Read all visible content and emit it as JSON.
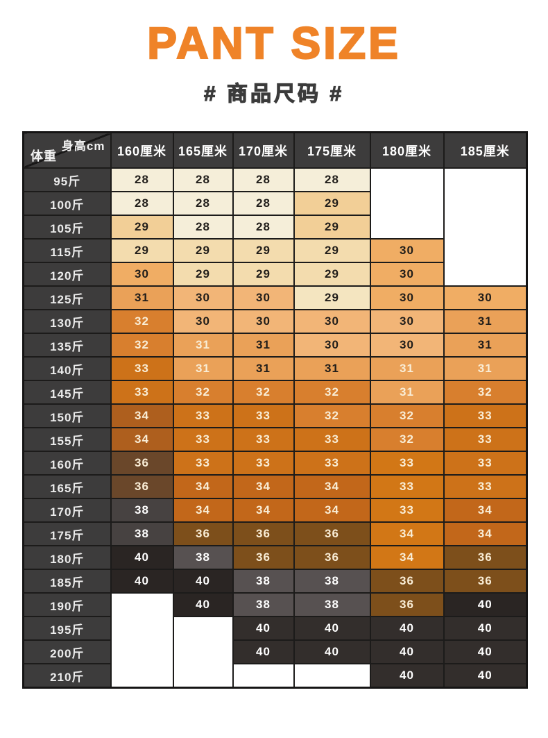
{
  "header": {
    "title": "PANT SIZE",
    "subtitle": "# 商品尺码 #"
  },
  "chart_data": {
    "type": "table",
    "title": "PANT SIZE",
    "subtitle": "# 商品尺码 #",
    "corner": {
      "top_right": "身高cm",
      "bottom_left": "体重"
    },
    "columns": [
      "160厘米",
      "165厘米",
      "170厘米",
      "175厘米",
      "180厘米",
      "185厘米"
    ],
    "rows": [
      {
        "weight": "95斤",
        "sizes": [
          "28",
          "28",
          "28",
          "28",
          null,
          null
        ]
      },
      {
        "weight": "100斤",
        "sizes": [
          "28",
          "28",
          "28",
          "29",
          null,
          null
        ]
      },
      {
        "weight": "105斤",
        "sizes": [
          "29",
          "28",
          "28",
          "29",
          null,
          null
        ]
      },
      {
        "weight": "115斤",
        "sizes": [
          "29",
          "29",
          "29",
          "29",
          "30",
          null
        ]
      },
      {
        "weight": "120斤",
        "sizes": [
          "30",
          "29",
          "29",
          "29",
          "30",
          null
        ]
      },
      {
        "weight": "125斤",
        "sizes": [
          "31",
          "30",
          "30",
          "29",
          "30",
          "30"
        ]
      },
      {
        "weight": "130斤",
        "sizes": [
          "32",
          "30",
          "30",
          "30",
          "30",
          "31"
        ]
      },
      {
        "weight": "135斤",
        "sizes": [
          "32",
          "31",
          "31",
          "30",
          "30",
          "31"
        ]
      },
      {
        "weight": "140斤",
        "sizes": [
          "33",
          "31",
          "31",
          "31",
          "31",
          "31"
        ]
      },
      {
        "weight": "145斤",
        "sizes": [
          "33",
          "32",
          "32",
          "32",
          "31",
          "32"
        ]
      },
      {
        "weight": "150斤",
        "sizes": [
          "34",
          "33",
          "33",
          "32",
          "32",
          "33"
        ]
      },
      {
        "weight": "155斤",
        "sizes": [
          "34",
          "33",
          "33",
          "33",
          "32",
          "33"
        ]
      },
      {
        "weight": "160斤",
        "sizes": [
          "36",
          "33",
          "33",
          "33",
          "33",
          "33"
        ]
      },
      {
        "weight": "165斤",
        "sizes": [
          "36",
          "34",
          "34",
          "34",
          "33",
          "33"
        ]
      },
      {
        "weight": "170斤",
        "sizes": [
          "38",
          "34",
          "34",
          "34",
          "33",
          "34"
        ]
      },
      {
        "weight": "175斤",
        "sizes": [
          "38",
          "36",
          "36",
          "36",
          "34",
          "34"
        ]
      },
      {
        "weight": "180斤",
        "sizes": [
          "40",
          "38",
          "36",
          "36",
          "34",
          "36"
        ]
      },
      {
        "weight": "185斤",
        "sizes": [
          "40",
          "40",
          "38",
          "38",
          "36",
          "36"
        ]
      },
      {
        "weight": "190斤",
        "sizes": [
          null,
          "40",
          "38",
          "38",
          "36",
          "40"
        ]
      },
      {
        "weight": "195斤",
        "sizes": [
          null,
          null,
          "40",
          "40",
          "40",
          "40"
        ]
      },
      {
        "weight": "200斤",
        "sizes": [
          null,
          null,
          "40",
          "40",
          "40",
          "40"
        ]
      },
      {
        "weight": "210斤",
        "sizes": [
          null,
          null,
          null,
          null,
          "40",
          "40"
        ]
      }
    ]
  },
  "table_style": {
    "palette": {
      "cream": "#f5eed9",
      "peach": "#f2cf97",
      "tan": "#f3dcae",
      "cream2": "#f4e5c0",
      "lo1": "#f2b577",
      "lo2": "#f0ad64",
      "mo1": "#eaa158",
      "o1": "#d87f2e",
      "o2": "#cd7219",
      "o3": "#c2671a",
      "o4": "#ae5f1e",
      "ob": "#d27716",
      "br": "#7d4f1b",
      "br2": "#6a472a",
      "g1": "#575151",
      "g2": "#474241",
      "k1": "#2a2523",
      "k2": "#332e2c"
    },
    "text_tones": {
      "d": "#201d1a",
      "l": "#f9edd6",
      "w": "#ffffff"
    },
    "cells": [
      [
        [
          "cream",
          "d"
        ],
        [
          "cream",
          "d"
        ],
        [
          "cream",
          "d"
        ],
        [
          "cream",
          "d"
        ],
        null,
        null
      ],
      [
        [
          "cream",
          "d"
        ],
        [
          "cream",
          "d"
        ],
        [
          "cream",
          "d"
        ],
        [
          "peach",
          "d"
        ],
        null,
        null
      ],
      [
        [
          "peach",
          "d"
        ],
        [
          "cream",
          "d"
        ],
        [
          "cream",
          "d"
        ],
        [
          "peach",
          "d"
        ],
        null,
        null
      ],
      [
        [
          "tan",
          "d"
        ],
        [
          "tan",
          "d"
        ],
        [
          "tan",
          "d"
        ],
        [
          "tan",
          "d"
        ],
        [
          "lo2",
          "d"
        ],
        null
      ],
      [
        [
          "lo2",
          "d"
        ],
        [
          "tan",
          "d"
        ],
        [
          "tan",
          "d"
        ],
        [
          "tan",
          "d"
        ],
        [
          "lo2",
          "d"
        ],
        null
      ],
      [
        [
          "mo1",
          "d"
        ],
        [
          "lo1",
          "d"
        ],
        [
          "lo1",
          "d"
        ],
        [
          "cream2",
          "d"
        ],
        [
          "lo2",
          "d"
        ],
        [
          "lo2",
          "d"
        ]
      ],
      [
        [
          "o1",
          "l"
        ],
        [
          "lo1",
          "d"
        ],
        [
          "lo1",
          "d"
        ],
        [
          "lo1",
          "d"
        ],
        [
          "lo1",
          "d"
        ],
        [
          "mo1",
          "d"
        ]
      ],
      [
        [
          "o1",
          "l"
        ],
        [
          "mo1",
          "l"
        ],
        [
          "mo1",
          "d"
        ],
        [
          "lo1",
          "d"
        ],
        [
          "lo1",
          "d"
        ],
        [
          "mo1",
          "d"
        ]
      ],
      [
        [
          "o2",
          "l"
        ],
        [
          "mo1",
          "l"
        ],
        [
          "mo1",
          "d"
        ],
        [
          "mo1",
          "d"
        ],
        [
          "mo1",
          "l"
        ],
        [
          "mo1",
          "l"
        ]
      ],
      [
        [
          "o2",
          "l"
        ],
        [
          "o1",
          "l"
        ],
        [
          "o1",
          "l"
        ],
        [
          "o1",
          "l"
        ],
        [
          "mo1",
          "l"
        ],
        [
          "o1",
          "l"
        ]
      ],
      [
        [
          "o4",
          "l"
        ],
        [
          "o2",
          "l"
        ],
        [
          "o2",
          "l"
        ],
        [
          "o1",
          "l"
        ],
        [
          "o1",
          "l"
        ],
        [
          "o2",
          "l"
        ]
      ],
      [
        [
          "o4",
          "l"
        ],
        [
          "o2",
          "l"
        ],
        [
          "o2",
          "l"
        ],
        [
          "o2",
          "l"
        ],
        [
          "o1",
          "l"
        ],
        [
          "o2",
          "l"
        ]
      ],
      [
        [
          "br2",
          "l"
        ],
        [
          "o2",
          "l"
        ],
        [
          "o2",
          "l"
        ],
        [
          "o2",
          "l"
        ],
        [
          "ob",
          "l"
        ],
        [
          "o2",
          "l"
        ]
      ],
      [
        [
          "br2",
          "l"
        ],
        [
          "o3",
          "l"
        ],
        [
          "o3",
          "l"
        ],
        [
          "o3",
          "l"
        ],
        [
          "ob",
          "l"
        ],
        [
          "o2",
          "l"
        ]
      ],
      [
        [
          "g2",
          "w"
        ],
        [
          "o3",
          "l"
        ],
        [
          "o3",
          "l"
        ],
        [
          "o3",
          "l"
        ],
        [
          "ob",
          "l"
        ],
        [
          "o3",
          "l"
        ]
      ],
      [
        [
          "g2",
          "w"
        ],
        [
          "br",
          "l"
        ],
        [
          "br",
          "l"
        ],
        [
          "br",
          "l"
        ],
        [
          "ob",
          "l"
        ],
        [
          "o3",
          "l"
        ]
      ],
      [
        [
          "k1",
          "w"
        ],
        [
          "g1",
          "w"
        ],
        [
          "br",
          "l"
        ],
        [
          "br",
          "l"
        ],
        [
          "ob",
          "l"
        ],
        [
          "br",
          "l"
        ]
      ],
      [
        [
          "k1",
          "w"
        ],
        [
          "k1",
          "w"
        ],
        [
          "g1",
          "w"
        ],
        [
          "g1",
          "w"
        ],
        [
          "br",
          "l"
        ],
        [
          "br",
          "l"
        ]
      ],
      [
        null,
        [
          "k1",
          "w"
        ],
        [
          "g1",
          "w"
        ],
        [
          "g1",
          "w"
        ],
        [
          "br",
          "l"
        ],
        [
          "k1",
          "w"
        ]
      ],
      [
        null,
        null,
        [
          "k2",
          "w"
        ],
        [
          "k2",
          "w"
        ],
        [
          "k2",
          "w"
        ],
        [
          "k2",
          "w"
        ]
      ],
      [
        null,
        null,
        [
          "k2",
          "w"
        ],
        [
          "k2",
          "w"
        ],
        [
          "k2",
          "w"
        ],
        [
          "k2",
          "w"
        ]
      ],
      [
        null,
        null,
        null,
        null,
        [
          "k2",
          "w"
        ],
        [
          "k2",
          "w"
        ]
      ]
    ]
  },
  "colors": {
    "accent_orange": "#ef8328",
    "subtitle_gray": "#3b3b3b",
    "header_cell_bg": "#3d3c3c",
    "grid_border": "#1c1b1a",
    "page_bg": "#ffffff"
  }
}
